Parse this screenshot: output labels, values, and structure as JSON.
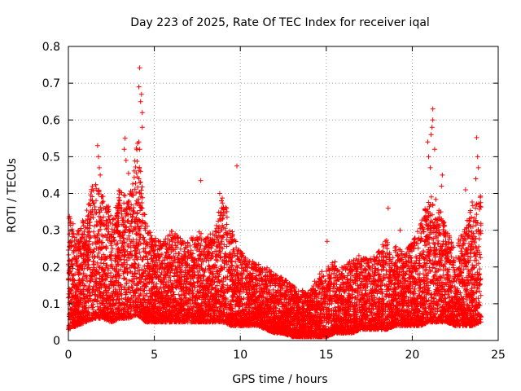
{
  "chart_data": {
    "type": "scatter",
    "title": "Day 223 of 2025, Rate Of TEC Index for receiver iqal",
    "xlabel": "GPS time / hours",
    "ylabel": "ROTI / TECUs",
    "xlim": [
      0,
      25
    ],
    "ylim": [
      0,
      0.8
    ],
    "x_ticks": [
      "0",
      "5",
      "10",
      "15",
      "20",
      "25"
    ],
    "y_ticks": [
      "0",
      "0.1",
      "0.2",
      "0.3",
      "0.4",
      "0.5",
      "0.6",
      "0.7",
      "0.8"
    ],
    "grid": true,
    "marker": "+",
    "color": "#ff0000",
    "envelope": {
      "x": [
        0,
        0.5,
        1,
        1.5,
        2,
        2.5,
        3,
        3.5,
        4,
        4.5,
        5,
        5.5,
        6,
        6.5,
        7,
        7.5,
        8,
        8.5,
        9,
        9.5,
        10,
        10.5,
        11,
        11.5,
        12,
        12.5,
        13,
        13.5,
        14,
        14.5,
        15,
        15.5,
        16,
        16.5,
        17,
        17.5,
        18,
        18.5,
        19,
        19.5,
        20,
        20.5,
        21,
        21.5,
        22,
        22.5,
        23,
        23.5,
        24
      ],
      "upper": [
        0.35,
        0.3,
        0.34,
        0.45,
        0.4,
        0.35,
        0.42,
        0.38,
        0.55,
        0.32,
        0.28,
        0.27,
        0.3,
        0.28,
        0.27,
        0.3,
        0.28,
        0.3,
        0.4,
        0.3,
        0.25,
        0.22,
        0.21,
        0.2,
        0.18,
        0.17,
        0.15,
        0.14,
        0.13,
        0.18,
        0.2,
        0.22,
        0.2,
        0.22,
        0.24,
        0.22,
        0.24,
        0.28,
        0.26,
        0.24,
        0.27,
        0.32,
        0.4,
        0.38,
        0.3,
        0.26,
        0.3,
        0.38,
        0.4
      ],
      "lower": [
        0.03,
        0.04,
        0.05,
        0.06,
        0.06,
        0.05,
        0.06,
        0.06,
        0.07,
        0.05,
        0.05,
        0.05,
        0.05,
        0.05,
        0.05,
        0.05,
        0.05,
        0.05,
        0.05,
        0.04,
        0.04,
        0.04,
        0.04,
        0.03,
        0.02,
        0.02,
        0.01,
        0.01,
        0.01,
        0.01,
        0.01,
        0.02,
        0.02,
        0.02,
        0.03,
        0.03,
        0.03,
        0.03,
        0.04,
        0.04,
        0.04,
        0.04,
        0.05,
        0.05,
        0.05,
        0.04,
        0.04,
        0.04,
        0.05
      ]
    },
    "outliers": [
      {
        "x": 4.15,
        "y": 0.742
      },
      {
        "x": 4.1,
        "y": 0.69
      },
      {
        "x": 4.25,
        "y": 0.67
      },
      {
        "x": 4.2,
        "y": 0.65
      },
      {
        "x": 4.3,
        "y": 0.62
      },
      {
        "x": 4.3,
        "y": 0.58
      },
      {
        "x": 4.1,
        "y": 0.54
      },
      {
        "x": 4.15,
        "y": 0.52
      },
      {
        "x": 4.2,
        "y": 0.46
      },
      {
        "x": 4.1,
        "y": 0.44
      },
      {
        "x": 3.3,
        "y": 0.55
      },
      {
        "x": 3.25,
        "y": 0.52
      },
      {
        "x": 3.35,
        "y": 0.49
      },
      {
        "x": 3.5,
        "y": 0.455
      },
      {
        "x": 1.7,
        "y": 0.53
      },
      {
        "x": 1.75,
        "y": 0.5
      },
      {
        "x": 1.8,
        "y": 0.47
      },
      {
        "x": 1.85,
        "y": 0.45
      },
      {
        "x": 7.7,
        "y": 0.435
      },
      {
        "x": 9.8,
        "y": 0.475
      },
      {
        "x": 8.8,
        "y": 0.4
      },
      {
        "x": 8.9,
        "y": 0.38
      },
      {
        "x": 21.2,
        "y": 0.63
      },
      {
        "x": 21.2,
        "y": 0.6
      },
      {
        "x": 21.15,
        "y": 0.58
      },
      {
        "x": 21.1,
        "y": 0.56
      },
      {
        "x": 20.9,
        "y": 0.54
      },
      {
        "x": 21.3,
        "y": 0.52
      },
      {
        "x": 20.95,
        "y": 0.5
      },
      {
        "x": 21.05,
        "y": 0.47
      },
      {
        "x": 21.75,
        "y": 0.45
      },
      {
        "x": 21.7,
        "y": 0.42
      },
      {
        "x": 23.75,
        "y": 0.552
      },
      {
        "x": 23.8,
        "y": 0.5
      },
      {
        "x": 23.85,
        "y": 0.47
      },
      {
        "x": 23.7,
        "y": 0.44
      },
      {
        "x": 23.1,
        "y": 0.41
      },
      {
        "x": 15.05,
        "y": 0.27
      },
      {
        "x": 18.6,
        "y": 0.36
      },
      {
        "x": 19.3,
        "y": 0.3
      }
    ]
  }
}
